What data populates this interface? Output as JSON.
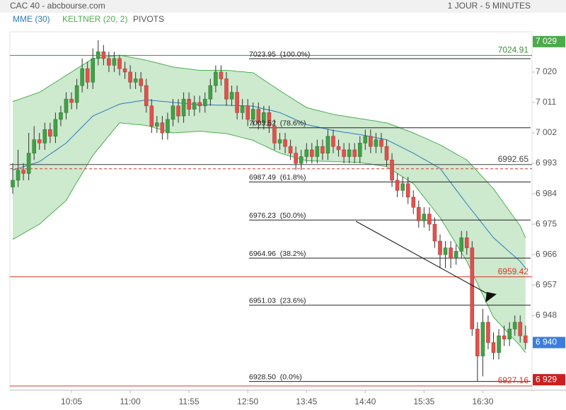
{
  "header": {
    "title": "CAC 40 - abcbourse.com",
    "period": "1 JOUR - 5 MINUTES"
  },
  "chart_data": {
    "type": "candlestick",
    "categories": [
      null,
      null,
      null,
      null,
      null,
      null,
      null,
      null,
      null,
      null,
      null,
      "10:05",
      null,
      null,
      null,
      null,
      null,
      null,
      null,
      null,
      null,
      null,
      "11:00",
      null,
      null,
      null,
      null,
      null,
      null,
      null,
      null,
      null,
      null,
      "11:55",
      null,
      null,
      null,
      null,
      null,
      null,
      null,
      null,
      null,
      null,
      "12:50",
      null,
      null,
      null,
      null,
      null,
      null,
      null,
      null,
      null,
      null,
      "13:45",
      null,
      null,
      null,
      null,
      null,
      null,
      null,
      null,
      null,
      null,
      "14:40",
      null,
      null,
      null,
      null,
      null,
      null,
      null,
      null,
      null,
      null,
      "15:35",
      null,
      null,
      null,
      null,
      null,
      null,
      null,
      null,
      null,
      null,
      "16:30",
      null,
      null,
      null,
      null,
      null,
      null,
      null,
      null
    ],
    "open": [
      6986,
      6988,
      6991,
      6990,
      6996,
      7000,
      6999,
      7003,
      7001,
      7006,
      7008,
      7012,
      7011,
      7016,
      7021,
      7017,
      7024,
      7026,
      7024,
      7022,
      7024,
      7021,
      7020,
      7017,
      7018,
      7016,
      7010,
      7004,
      7005,
      7002,
      7006,
      7010,
      7007,
      7012,
      7009,
      7011,
      7010,
      7012,
      7016,
      7020,
      7018,
      7012,
      7014,
      7008,
      7010,
      7006,
      7009,
      7005,
      7008,
      7004,
      6999,
      7000,
      6998,
      6996,
      6993,
      6995,
      6997,
      6995,
      6998,
      6996,
      7001,
      6998,
      6997,
      6995,
      6997,
      6995,
      6999,
      7001,
      6998,
      7000,
      6998,
      6994,
      6988,
      6985,
      6987,
      6983,
      6980,
      6976,
      6978,
      6975,
      6970,
      6966,
      6968,
      6965,
      6967,
      6971,
      6968,
      6944,
      6936,
      6946,
      6940,
      6937,
      6942,
      6941,
      6944,
      6946,
      6942
    ],
    "high": [
      6993,
      6997,
      6993,
      7002,
      7004,
      7002,
      7005,
      7005,
      7008,
      7010,
      7014,
      7014,
      7018,
      7024,
      7023,
      7027,
      7029.4,
      7028,
      7026,
      7026,
      7025,
      7023,
      7022,
      7020,
      7020,
      7018,
      7012,
      7007,
      7007,
      7008,
      7012,
      7012,
      7014,
      7014,
      7013,
      7013,
      7014,
      7018,
      7022,
      7022,
      7020,
      7016,
      7016,
      7012,
      7012,
      7011,
      7011,
      7010,
      7010,
      7006,
      7002,
      7002,
      7000,
      6998,
      6997,
      6999,
      6999,
      7000,
      7000,
      7003,
      7003,
      7000,
      6999,
      6999,
      6999,
      7001,
      7003,
      7003,
      7002,
      7002,
      7000,
      6996,
      6990,
      6989,
      6989,
      6985,
      6982,
      6980,
      6980,
      6977,
      6972,
      6970,
      6970,
      6969,
      6973,
      6973,
      6970,
      6946,
      6950,
      6948,
      6943,
      6944,
      6945,
      6946,
      6948,
      6948,
      6945
    ],
    "low": [
      6984,
      6986,
      6988,
      6988,
      6994,
      6997,
      6997,
      6999,
      6999,
      7004,
      7006,
      7009,
      7009,
      7014,
      7015,
      7015,
      7022,
      7022,
      7020,
      7020,
      7019,
      7018,
      7015,
      7015,
      7014,
      7008,
      7002,
      7002,
      7000,
      7000,
      7004,
      7005,
      7005,
      7007,
      7007,
      7008,
      7008,
      7010,
      7014,
      7016,
      7010,
      7010,
      7006,
      7006,
      7004,
      7004,
      7003,
      7003,
      7002,
      6997,
      6997,
      6996,
      6994,
      6991,
      6991,
      6993,
      6993,
      6993,
      6994,
      6994,
      6996,
      6995,
      6993,
      6993,
      6993,
      6993,
      6997,
      6996,
      6996,
      6996,
      6992,
      6986,
      6983,
      6983,
      6981,
      6978,
      6974,
      6974,
      6973,
      6968,
      6962,
      6962,
      6962,
      6963,
      6965,
      6966,
      6942,
      6928.5,
      6930,
      6938,
      6935,
      6935,
      6939,
      6939,
      6942,
      6940,
      6938
    ],
    "close": [
      6988,
      6991,
      6990,
      6996,
      7000,
      6999,
      7003,
      7001,
      7006,
      7008,
      7012,
      7011,
      7016,
      7021,
      7017,
      7024,
      7026,
      7024,
      7022,
      7024,
      7021,
      7020,
      7017,
      7018,
      7016,
      7010,
      7004,
      7005,
      7002,
      7006,
      7010,
      7007,
      7012,
      7009,
      7011,
      7010,
      7012,
      7016,
      7020,
      7018,
      7012,
      7014,
      7008,
      7010,
      7006,
      7009,
      7005,
      7008,
      7004,
      6999,
      7000,
      6998,
      6996,
      6993,
      6995,
      6997,
      6995,
      6998,
      6996,
      7001,
      6998,
      6997,
      6995,
      6997,
      6995,
      6999,
      7001,
      6998,
      7000,
      6998,
      6994,
      6988,
      6985,
      6987,
      6983,
      6980,
      6976,
      6978,
      6975,
      6970,
      6966,
      6968,
      6965,
      6967,
      6971,
      6968,
      6944,
      6936,
      6946,
      6940,
      6937,
      6942,
      6941,
      6944,
      6946,
      6942,
      6940
    ],
    "up_color": "#43a047",
    "down_color": "#e0524d",
    "series": [
      {
        "name": "MME (30)",
        "color": "#2b7bb9",
        "values": [
          6991,
          6991.5,
          6992,
          6992.5,
          6993,
          6993.5,
          6994.6,
          6995.7,
          6996.8,
          6997.9,
          6999,
          7000.6,
          7002.2,
          7003.8,
          7005.4,
          7007,
          7007.7,
          7008.4,
          7009.1,
          7009.8,
          7010.5,
          7010.8,
          7011,
          7011.3,
          7011.5,
          7011.8,
          7011.6,
          7011.5,
          7011.3,
          7011.2,
          7011,
          7010.9,
          7010.7,
          7010.6,
          7010.4,
          7010.3,
          7010.3,
          7010.3,
          7010.2,
          7010.2,
          7010.2,
          7010.1,
          7010.1,
          7010,
          7010,
          7009.9,
          7009.5,
          7009.1,
          7008.8,
          7008.4,
          7008,
          7007.3,
          7006.6,
          7005.9,
          7005.2,
          7004.5,
          7004.1,
          7003.8,
          7003.4,
          7003.1,
          7002.7,
          7002.5,
          7002.2,
          7002,
          7001.7,
          7001.5,
          7001.2,
          7000.9,
          7000.6,
          7000.3,
          7000,
          6999.2,
          6998.4,
          6997.6,
          6996.8,
          6996,
          6995.1,
          6994.2,
          6993.3,
          6992.4,
          6991.5,
          6989.4,
          6987.3,
          6985.2,
          6983.1,
          6981,
          6979,
          6977,
          6975,
          6973,
          6971,
          6969.6,
          6968.2,
          6966.8,
          6965.4,
          6964,
          6962
        ]
      },
      {
        "name": "KELTNER (20, 2)",
        "color": "#4caf50",
        "upper": [
          7011.3,
          7011.8,
          7012.4,
          7012.9,
          7013.5,
          7014,
          7015,
          7016,
          7017,
          7018,
          7019,
          7020,
          7021,
          7022,
          7023,
          7024,
          7024.2,
          7024.4,
          7024.6,
          7024.8,
          7025,
          7024.7,
          7024.4,
          7024.1,
          7023.8,
          7023.5,
          7023.1,
          7022.7,
          7022.3,
          7021.9,
          7021.5,
          7021.3,
          7021.1,
          7020.9,
          7020.7,
          7020.5,
          7020.5,
          7020.5,
          7020.5,
          7020.5,
          7020.5,
          7020.4,
          7020.2,
          7020.1,
          7019.9,
          7019.8,
          7018.7,
          7017.7,
          7016.6,
          7015.6,
          7014.5,
          7013.5,
          7012.5,
          7011.5,
          7010.5,
          7009.5,
          7009.1,
          7008.7,
          7008.3,
          7007.9,
          7007.5,
          7007.2,
          7007,
          7006.7,
          7006.5,
          7006.2,
          7006,
          7005.7,
          7005.5,
          7005.2,
          7005,
          7004.4,
          7003.8,
          7003.2,
          7002.6,
          7002,
          7001.3,
          7000.6,
          6999.9,
          6999.2,
          6998.5,
          6997.6,
          6996.7,
          6995.8,
          6994.9,
          6994,
          6992.3,
          6990.6,
          6988.9,
          6987.2,
          6985.5,
          6983.3,
          6981.1,
          6978.9,
          6976.7,
          6974.5,
          6971
        ],
        "lower": [
          6970.5,
          6971.4,
          6972.3,
          6973.2,
          6974.1,
          6975,
          6976.4,
          6977.8,
          6979.2,
          6980.6,
          6982,
          6984.7,
          6987.4,
          6990,
          6992.7,
          6995.4,
          6997.3,
          6999.2,
          7001.2,
          7003.1,
          7005,
          7004.8,
          7004.7,
          7004.5,
          7004.4,
          7004.2,
          7003.8,
          7003.3,
          7002.9,
          7002.4,
          7002,
          7002.1,
          7002.2,
          7002.3,
          7002.4,
          7002.5,
          7002.4,
          7002.2,
          7002.1,
          7001.9,
          7001.8,
          7001.4,
          7001,
          7000.6,
          7000.2,
          6999.8,
          6999,
          6998.3,
          6997.5,
          6996.8,
          6996,
          6995.6,
          6995.1,
          6994.7,
          6994.2,
          6993.8,
          6993.7,
          6993.7,
          6993.6,
          6993.6,
          6993.5,
          6993.5,
          6993.4,
          6993.4,
          6993.3,
          6993.3,
          6993,
          6992.8,
          6992.5,
          6992.3,
          6992,
          6991,
          6990,
          6989,
          6988,
          6987,
          6985,
          6983,
          6981,
          6979,
          6977,
          6974.4,
          6971.8,
          6969.2,
          6966.6,
          6964,
          6960.7,
          6957.4,
          6954.1,
          6950.8,
          6947.5,
          6945.8,
          6944.1,
          6942.4,
          6940.7,
          6939,
          6937
        ]
      }
    ],
    "pivots": {
      "name": "PIVOTS",
      "color": "#555555",
      "levels": [
        {
          "value": 7024.91,
          "color": "#3c8f3c"
        },
        {
          "value": 6992.65,
          "color": "#444444"
        },
        {
          "value": 6959.42,
          "color": "#d9342b"
        },
        {
          "value": 6927.16,
          "color": "#d9342b"
        }
      ]
    },
    "dashed_line": {
      "value": 6991.4,
      "color": "#d9342b"
    },
    "fibonacci": [
      {
        "value": 7023.95,
        "label": "7023.95  (100.0%)"
      },
      {
        "value": 7003.52,
        "label": "7003.52  (78.6%)"
      },
      {
        "value": 6987.49,
        "label": "6987.49  (61.8%)"
      },
      {
        "value": 6976.23,
        "label": "6976.23  (50.0%)"
      },
      {
        "value": 6964.96,
        "label": "6964.96  (38.2%)"
      },
      {
        "value": 6951.03,
        "label": "6951.03  (23.6%)"
      },
      {
        "value": 6928.5,
        "label": "6928.50  (0.0%)"
      }
    ],
    "price_markers": [
      {
        "value": 7029,
        "label": "7 029",
        "color": "#4caa4c"
      },
      {
        "value": 6940,
        "label": "6 940",
        "color": "#3b7ddd"
      },
      {
        "value": 6929,
        "label": "6 929",
        "color": "#cc1f1f"
      }
    ],
    "ylim": [
      6925.9,
      7031.9
    ],
    "yticks": [
      {
        "value": 7020,
        "label": "7 020"
      },
      {
        "value": 7011,
        "label": "7 011"
      },
      {
        "value": 7002,
        "label": "7 002"
      },
      {
        "value": 6993,
        "label": "6 993"
      },
      {
        "value": 6984,
        "label": "6 984"
      },
      {
        "value": 6975,
        "label": "6 975"
      },
      {
        "value": 6966,
        "label": "6 966"
      },
      {
        "value": 6957,
        "label": "6 957"
      },
      {
        "value": 6948,
        "label": "6 948"
      }
    ],
    "grid": false
  }
}
